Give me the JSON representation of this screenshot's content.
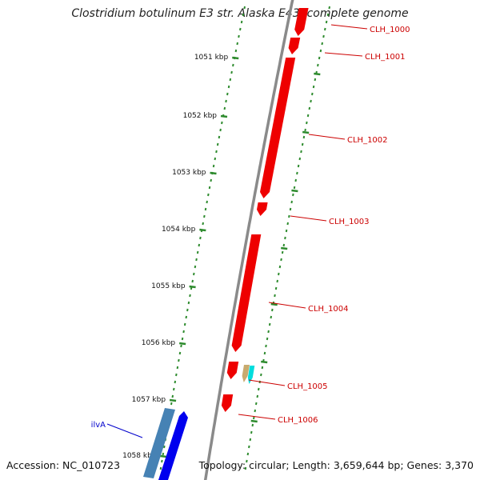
{
  "title": "Clostridium botulinum E3 str. Alaska E43, complete genome",
  "accession": "Accession: NC_010723",
  "summary": "Topology: circular; Length: 3,659,644 bp; Genes: 3,370",
  "colors": {
    "backbone": "#8a8a8a",
    "tick": "#2e8b2e",
    "gene_forward": "#0000ee",
    "gene_reverse": "#ee0000",
    "gene_other": "#c8aa6e",
    "gene_tRNA": "#00dddd",
    "gene_steel": "#4682b4",
    "label_reverse": "#cc0000",
    "label_forward": "#0000cc"
  },
  "ticks": [
    "1051 kbp",
    "1052 kbp",
    "1053 kbp",
    "1054 kbp",
    "1055 kbp",
    "1056 kbp",
    "1057 kbp",
    "1058 kbp"
  ],
  "genes": [
    {
      "label": "CLH_1000",
      "strand": "reverse"
    },
    {
      "label": "CLH_1001",
      "strand": "reverse"
    },
    {
      "label": "CLH_1002",
      "strand": "reverse"
    },
    {
      "label": "CLH_1003",
      "strand": "reverse"
    },
    {
      "label": "CLH_1004",
      "strand": "reverse"
    },
    {
      "label": "CLH_1005",
      "strand": "reverse"
    },
    {
      "label": "CLH_1006",
      "strand": "reverse"
    },
    {
      "label": "ilvA",
      "strand": "forward"
    }
  ]
}
